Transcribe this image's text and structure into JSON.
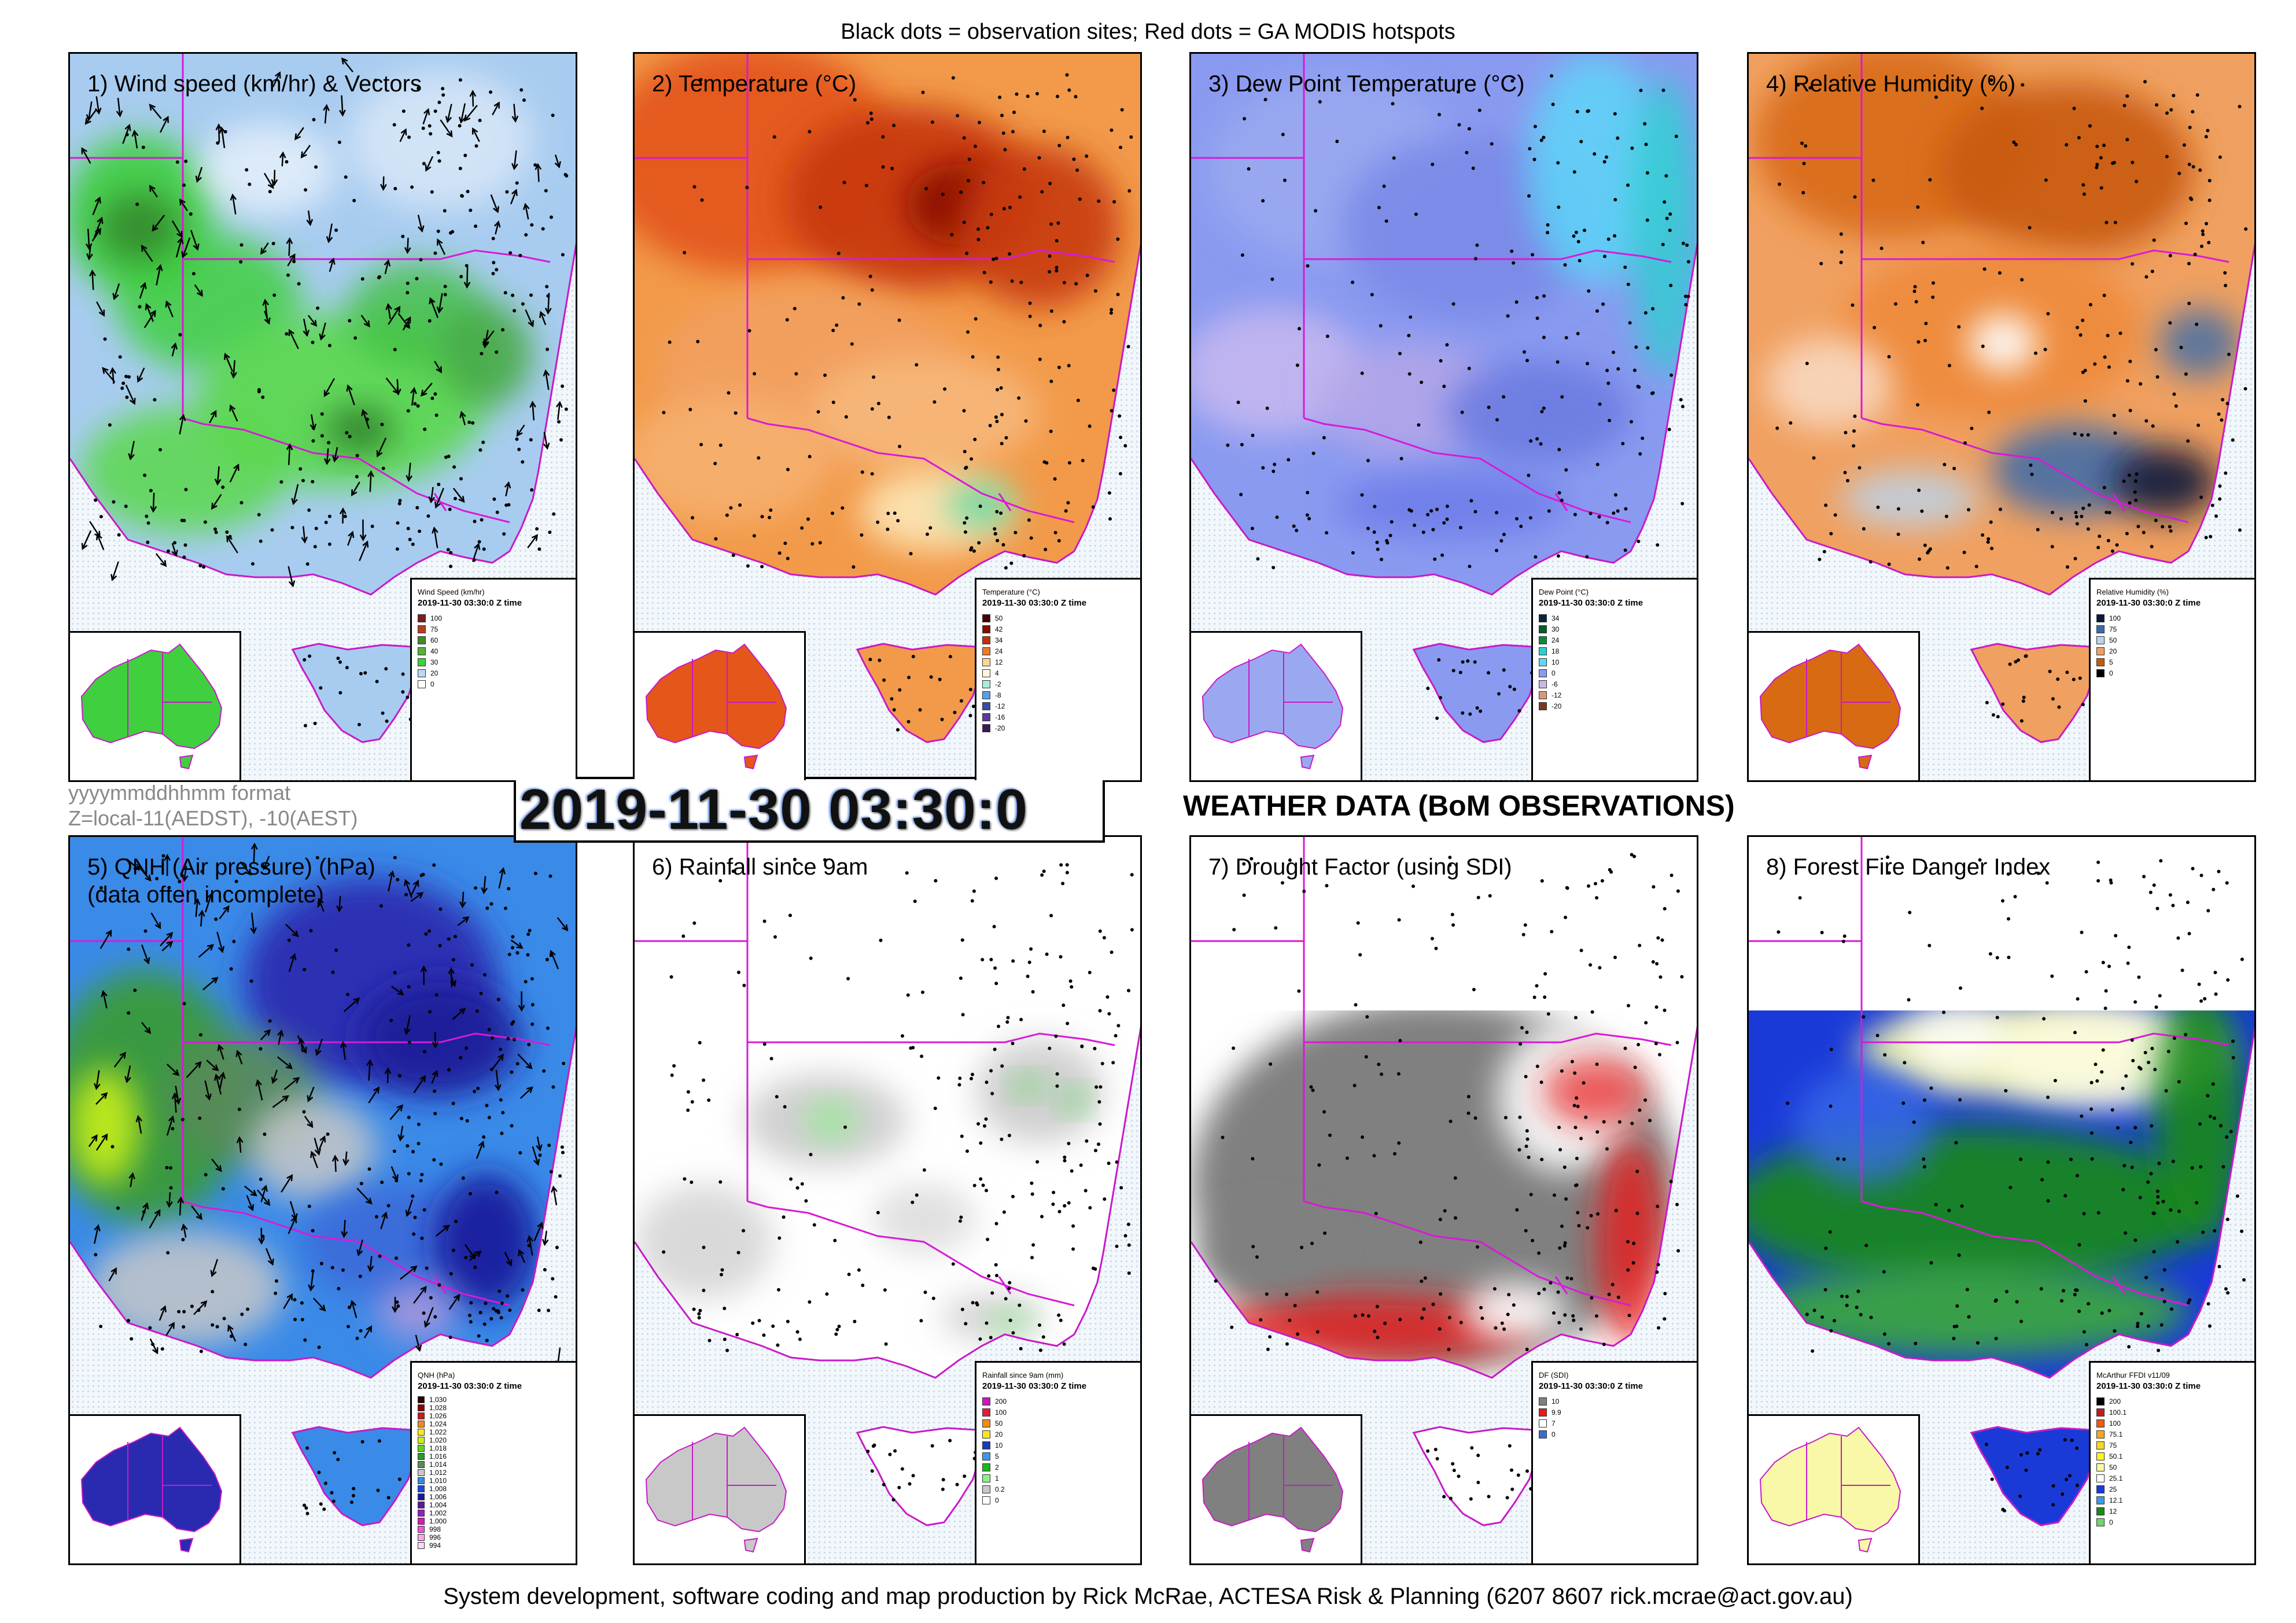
{
  "subtitle": "Black dots = observation sites; Red dots = GA MODIS hotspots",
  "credit": "System development, software coding and map production by Rick McRae, ACTESA Risk & Planning (6207 8607 rick.mcrae@act.gov.au)",
  "datetime": "2019-11-30 03:30:0",
  "format_note": {
    "line1": "yyyymmddhhmm format",
    "line2": "Z=local-11(AEDST), -10(AEST)"
  },
  "weather_title": "WEATHER DATA (BoM OBSERVATIONS)",
  "panels": [
    {
      "id": "wind",
      "title": "1) Wind speed (km/hr) & Vectors",
      "title2": "",
      "legend_title": "Wind Speed (km/hr)",
      "legend_time": "2019-11-30 03:30:0 Z time",
      "legend": [
        {
          "v": "100",
          "c": "#7a1e1e"
        },
        {
          "v": "75",
          "c": "#b04020"
        },
        {
          "v": "60",
          "c": "#3f8a2a"
        },
        {
          "v": "40",
          "c": "#58b03c"
        },
        {
          "v": "30",
          "c": "#3fcf3f"
        },
        {
          "v": "20",
          "c": "#b8d8f4"
        },
        {
          "v": "0",
          "c": "#ffffff"
        }
      ],
      "field": "wind"
    },
    {
      "id": "temperature",
      "title": "2) Temperature (°C)",
      "title2": "",
      "legend_title": "Temperature (°C)",
      "legend_time": "2019-11-30 03:30:0 Z time",
      "legend": [
        {
          "v": "50",
          "c": "#4a0000"
        },
        {
          "v": "42",
          "c": "#8a0a00"
        },
        {
          "v": "34",
          "c": "#c82e00"
        },
        {
          "v": "24",
          "c": "#ee7a22"
        },
        {
          "v": "12",
          "c": "#f8d890"
        },
        {
          "v": "4",
          "c": "#fdf6d8"
        },
        {
          "v": "-2",
          "c": "#a8ecd8"
        },
        {
          "v": "-8",
          "c": "#5aa0e8"
        },
        {
          "v": "-12",
          "c": "#3a4aa8"
        },
        {
          "v": "-16",
          "c": "#5a3a9a"
        },
        {
          "v": "-20",
          "c": "#3a1a5a"
        }
      ],
      "field": "temperature"
    },
    {
      "id": "dewpoint",
      "title": "3) Dew Point Temperature (°C)",
      "title2": "",
      "legend_title": "Dew Point (°C)",
      "legend_time": "2019-11-30 03:30:0 Z time",
      "legend": [
        {
          "v": "34",
          "c": "#08263a"
        },
        {
          "v": "30",
          "c": "#0a5a2a"
        },
        {
          "v": "24",
          "c": "#0a8a3a"
        },
        {
          "v": "18",
          "c": "#2ad0d0"
        },
        {
          "v": "10",
          "c": "#5ad8f8"
        },
        {
          "v": "0",
          "c": "#8a9af0"
        },
        {
          "v": "-6",
          "c": "#c8b8e8"
        },
        {
          "v": "-12",
          "c": "#d89878"
        },
        {
          "v": "-20",
          "c": "#7a3a1a"
        }
      ],
      "field": "dewpoint"
    },
    {
      "id": "humidity",
      "title": "4) Relative Humidity (%)",
      "title2": "",
      "legend_title": "Relative Humidity (%)",
      "legend_time": "2019-11-30 03:30:0 Z time",
      "legend": [
        {
          "v": "100",
          "c": "#0a1a3a"
        },
        {
          "v": "75",
          "c": "#3a6aaa"
        },
        {
          "v": "50",
          "c": "#bcd4ea"
        },
        {
          "v": "20",
          "c": "#f2a060"
        },
        {
          "v": "5",
          "c": "#c85a0a"
        },
        {
          "v": "0",
          "c": "#000000"
        }
      ],
      "field": "humidity"
    },
    {
      "id": "qnh",
      "title": "5) QNH (Air pressure) (hPa)",
      "title2": "(data often incomplete)",
      "legend_title": "QNH (hPa)",
      "legend_time": "2019-11-30 03:30:0 Z time",
      "legend": [
        {
          "v": "1,030",
          "c": "#2a0000"
        },
        {
          "v": "1,028",
          "c": "#8a0000"
        },
        {
          "v": "1,026",
          "c": "#c81a1a"
        },
        {
          "v": "1,024",
          "c": "#f08a1a"
        },
        {
          "v": "1,022",
          "c": "#f8e81a"
        },
        {
          "v": "1,020",
          "c": "#c8f01a"
        },
        {
          "v": "1,018",
          "c": "#5ad81a"
        },
        {
          "v": "1,016",
          "c": "#2a9a2a"
        },
        {
          "v": "1,014",
          "c": "#5a8a5a"
        },
        {
          "v": "1,012",
          "c": "#c8c8c8"
        },
        {
          "v": "1,010",
          "c": "#3a8ae8"
        },
        {
          "v": "1,008",
          "c": "#1a4ad8"
        },
        {
          "v": "1,006",
          "c": "#1a1a9a"
        },
        {
          "v": "1,004",
          "c": "#5a1a9a"
        },
        {
          "v": "1,002",
          "c": "#9a1ac8"
        },
        {
          "v": "1,000",
          "c": "#d81ab8"
        },
        {
          "v": "998",
          "c": "#e85ad8"
        },
        {
          "v": "996",
          "c": "#f8a8e8"
        },
        {
          "v": "994",
          "c": "#f8d8f8"
        }
      ],
      "field": "qnh"
    },
    {
      "id": "rainfall",
      "title": "6) Rainfall since 9am",
      "title2": "",
      "legend_title": "Rainfall since 9am (mm)",
      "legend_time": "2019-11-30 03:30:0 Z time",
      "legend": [
        {
          "v": "200",
          "c": "#c81ab8"
        },
        {
          "v": "100",
          "c": "#e81a3a"
        },
        {
          "v": "50",
          "c": "#f08a1a"
        },
        {
          "v": "20",
          "c": "#f8e81a"
        },
        {
          "v": "10",
          "c": "#1a3ab8"
        },
        {
          "v": "5",
          "c": "#3a9ae8"
        },
        {
          "v": "2",
          "c": "#1ab81a"
        },
        {
          "v": "1",
          "c": "#8af08a"
        },
        {
          "v": "0.2",
          "c": "#c8c8c8"
        },
        {
          "v": "0",
          "c": "#ffffff"
        }
      ],
      "field": "rainfall"
    },
    {
      "id": "drought",
      "title": "7) Drought Factor (using SDI)",
      "title2": "",
      "legend_title": "DF (SDI)",
      "legend_time": "2019-11-30 03:30:0 Z time",
      "legend": [
        {
          "v": "10",
          "c": "#808080"
        },
        {
          "v": "9.9",
          "c": "#e81a1a"
        },
        {
          "v": "7",
          "c": "#ffffff"
        },
        {
          "v": "0",
          "c": "#3a6ad8"
        }
      ],
      "field": "drought"
    },
    {
      "id": "ffdi",
      "title": "8) Forest Fire Danger Index",
      "title2": "",
      "legend_title": "McArthur FFDI v11/09",
      "legend_time": "2019-11-30 03:30:0 Z time",
      "legend": [
        {
          "v": "200",
          "c": "#000000"
        },
        {
          "v": "100.1",
          "c": "#c81a1a"
        },
        {
          "v": "100",
          "c": "#e85a1a"
        },
        {
          "v": "75.1",
          "c": "#f8a81a"
        },
        {
          "v": "75",
          "c": "#f8d81a"
        },
        {
          "v": "50.1",
          "c": "#f8f81a"
        },
        {
          "v": "50",
          "c": "#f8f8a8"
        },
        {
          "v": "25.1",
          "c": "#ffffff"
        },
        {
          "v": "25",
          "c": "#1a3ad8"
        },
        {
          "v": "12.1",
          "c": "#3a9ae8"
        },
        {
          "v": "12",
          "c": "#1a8a1a"
        },
        {
          "v": "0",
          "c": "#6ad86a"
        }
      ],
      "field": "ffdi"
    }
  ]
}
